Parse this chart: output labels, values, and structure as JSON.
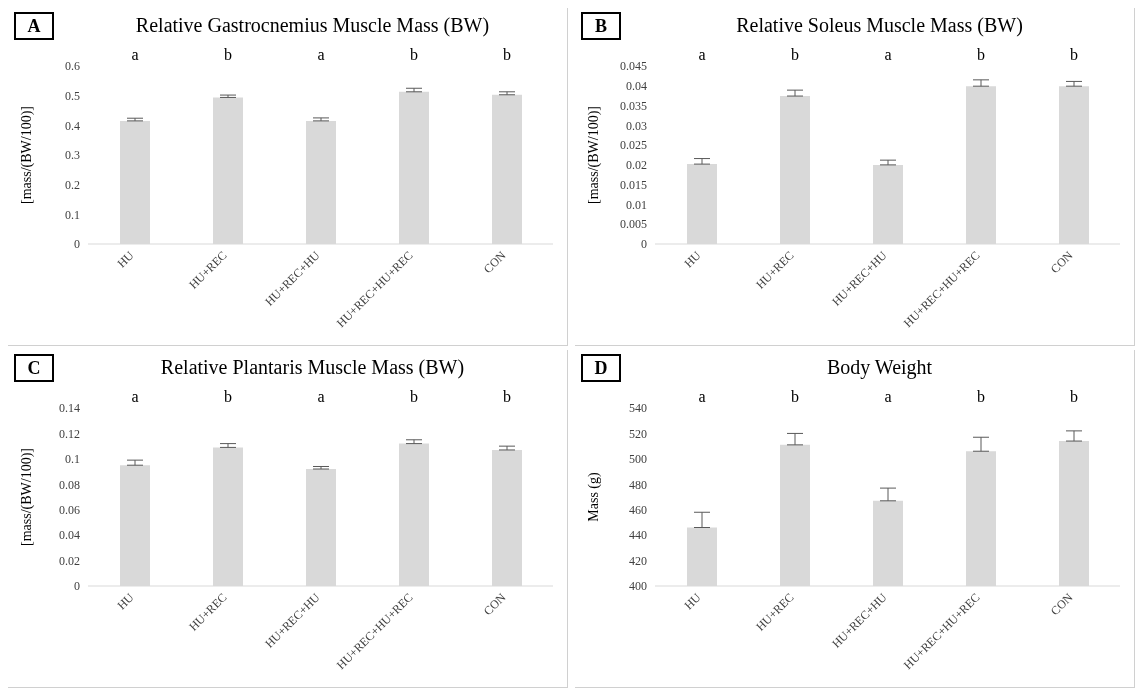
{
  "chart_data": [
    {
      "type": "bar",
      "title": "Relative Gastrocnemius Muscle Mass (BW)",
      "ylabel": "[mass/(BW/100)]",
      "categories": [
        "HU",
        "HU+REC",
        "HU+REC+HU",
        "HU+REC+HU+REC",
        "CON"
      ],
      "values": [
        0.415,
        0.494,
        0.415,
        0.513,
        0.503
      ],
      "errors": [
        [
          0.415,
          0.424
        ],
        [
          0.494,
          0.502
        ],
        [
          0.415,
          0.425
        ],
        [
          0.513,
          0.525
        ],
        [
          0.503,
          0.513
        ]
      ],
      "color": "#d9d9d9",
      "ylim": [
        0,
        0.6
      ],
      "yticks": [
        0,
        0.1,
        0.2,
        0.3,
        0.4,
        0.5,
        0.6
      ],
      "grid": false,
      "legend": false,
      "annotations": [
        "A",
        "a",
        "b",
        "a",
        "b",
        "b"
      ]
    },
    {
      "type": "bar",
      "title": "Relative Soleus Muscle Mass (BW)",
      "ylabel": "[mass/(BW/100)]",
      "categories": [
        "HU",
        "HU+REC",
        "HU+REC+HU",
        "HU+REC+HU+REC",
        "CON"
      ],
      "values": [
        0.0202,
        0.0374,
        0.02,
        0.0399,
        0.0399
      ],
      "errors": [
        [
          0.0202,
          0.0216
        ],
        [
          0.0374,
          0.0389
        ],
        [
          0.02,
          0.0212
        ],
        [
          0.0399,
          0.0415
        ],
        [
          0.0399,
          0.0411
        ]
      ],
      "color": "#d9d9d9",
      "ylim": [
        0,
        0.045
      ],
      "yticks": [
        0,
        0.005,
        0.01,
        0.015,
        0.02,
        0.025,
        0.03,
        0.035,
        0.04,
        0.045
      ],
      "grid": false,
      "legend": false,
      "annotations": [
        "B",
        "a",
        "b",
        "a",
        "b",
        "b"
      ]
    },
    {
      "type": "bar",
      "title": "Relative Plantaris Muscle Mass (BW)",
      "ylabel": "[mass/(BW/100)]",
      "categories": [
        "HU",
        "HU+REC",
        "HU+REC+HU",
        "HU+REC+HU+REC",
        "CON"
      ],
      "values": [
        0.095,
        0.109,
        0.092,
        0.112,
        0.107
      ],
      "errors": [
        [
          0.095,
          0.099
        ],
        [
          0.109,
          0.112
        ],
        [
          0.092,
          0.094
        ],
        [
          0.112,
          0.115
        ],
        [
          0.107,
          0.11
        ]
      ],
      "color": "#d9d9d9",
      "ylim": [
        0,
        0.14
      ],
      "yticks": [
        0,
        0.02,
        0.04,
        0.06,
        0.08,
        0.1,
        0.12,
        0.14
      ],
      "grid": false,
      "legend": false,
      "annotations": [
        "C",
        "a",
        "b",
        "a",
        "b",
        "b"
      ]
    },
    {
      "type": "bar",
      "title": "Body Weight",
      "ylabel": "Mass (g)",
      "categories": [
        "HU",
        "HU+REC",
        "HU+REC+HU",
        "HU+REC+HU+REC",
        "CON"
      ],
      "values": [
        446,
        511,
        467,
        506,
        514
      ],
      "errors": [
        [
          446,
          458
        ],
        [
          511,
          520
        ],
        [
          467,
          477
        ],
        [
          506,
          517
        ],
        [
          514,
          522
        ]
      ],
      "color": "#d9d9d9",
      "ylim": [
        400,
        540
      ],
      "yticks": [
        400,
        420,
        440,
        460,
        480,
        500,
        520,
        540
      ],
      "grid": false,
      "legend": false,
      "annotations": [
        "D",
        "a",
        "b",
        "a",
        "b",
        "b"
      ]
    }
  ]
}
